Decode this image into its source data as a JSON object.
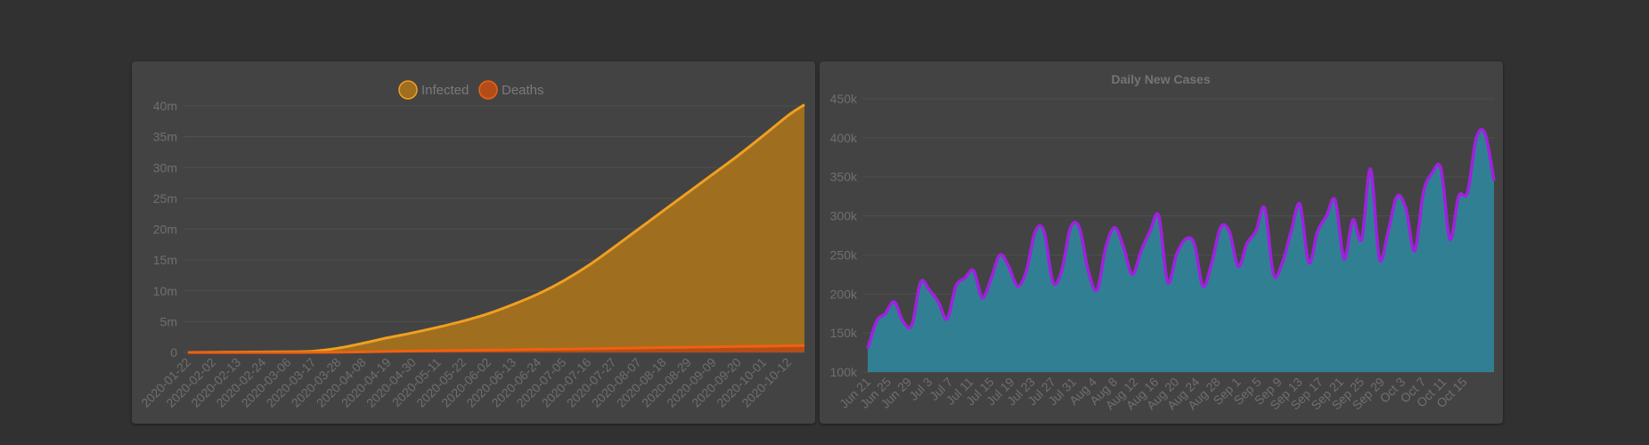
{
  "chart_data": [
    {
      "type": "area",
      "title": "",
      "legend": {
        "placement": "top-center"
      },
      "grid": true,
      "ylim": [
        0,
        40000000
      ],
      "y_ticks": [
        "0",
        "5m",
        "10m",
        "15m",
        "20m",
        "25m",
        "30m",
        "35m",
        "40m"
      ],
      "x_ticks": [
        "2020-01-22",
        "2020-02-02",
        "2020-02-13",
        "2020-02-24",
        "2020-03-06",
        "2020-03-17",
        "2020-03-28",
        "2020-04-08",
        "2020-04-19",
        "2020-04-30",
        "2020-05-11",
        "2020-05-22",
        "2020-06-02",
        "2020-06-13",
        "2020-06-24",
        "2020-07-05",
        "2020-07-16",
        "2020-07-27",
        "2020-08-07",
        "2020-08-18",
        "2020-08-29",
        "2020-09-09",
        "2020-09-20",
        "2020-10-01",
        "2020-10-12"
      ],
      "x": [
        "2020-01-22",
        "2020-02-13",
        "2020-03-06",
        "2020-03-17",
        "2020-03-28",
        "2020-04-08",
        "2020-04-19",
        "2020-04-30",
        "2020-05-11",
        "2020-05-22",
        "2020-06-02",
        "2020-06-13",
        "2020-06-24",
        "2020-07-05",
        "2020-07-16",
        "2020-07-27",
        "2020-08-07",
        "2020-08-18",
        "2020-08-29",
        "2020-09-09",
        "2020-09-20",
        "2020-10-01",
        "2020-10-12",
        "2020-10-19"
      ],
      "series": [
        {
          "name": "Infected",
          "color": "#f0a020",
          "fill": "#a06e1f",
          "values": [
            600,
            60000,
            100000,
            200000,
            700000,
            1500000,
            2400000,
            3200000,
            4100000,
            5100000,
            6300000,
            7800000,
            9500000,
            11600000,
            14100000,
            17000000,
            20000000,
            23000000,
            26000000,
            29000000,
            32000000,
            35200000,
            38500000,
            40200000
          ]
        },
        {
          "name": "Deaths",
          "color": "#f06010",
          "fill": "#b34d18",
          "values": [
            17,
            1400,
            3500,
            7500,
            30000,
            88000,
            165000,
            234000,
            287000,
            340000,
            380000,
            430000,
            490000,
            540000,
            590000,
            660000,
            720000,
            790000,
            850000,
            910000,
            970000,
            1010000,
            1080000,
            1110000
          ]
        }
      ]
    },
    {
      "type": "area",
      "title": "Daily New Cases",
      "grid": true,
      "ylim": [
        100000,
        450000
      ],
      "y_ticks": [
        "100k",
        "150k",
        "200k",
        "250k",
        "300k",
        "350k",
        "400k",
        "450k"
      ],
      "x_ticks": [
        "Jun 21",
        "Jun 25",
        "Jun 29",
        "Jul 3",
        "Jul 7",
        "Jul 11",
        "Jul 15",
        "Jul 19",
        "Jul 23",
        "Jul 27",
        "Jul 31",
        "Aug 4",
        "Aug 8",
        "Aug 12",
        "Aug 16",
        "Aug 20",
        "Aug 24",
        "Aug 28",
        "Sep 1",
        "Sep 5",
        "Sep 9",
        "Sep 13",
        "Sep 17",
        "Sep 21",
        "Sep 25",
        "Sep 29",
        "Oct 3",
        "Oct 7",
        "Oct 11",
        "Oct 15"
      ],
      "series": [
        {
          "name": "",
          "color": "#a020e0",
          "fill": "#317f93",
          "values": [
            130000,
            165000,
            175000,
            190000,
            165000,
            160000,
            215000,
            205000,
            190000,
            168000,
            210000,
            220000,
            230000,
            195000,
            220000,
            250000,
            235000,
            210000,
            230000,
            280000,
            280000,
            215000,
            230000,
            285000,
            285000,
            230000,
            205000,
            260000,
            285000,
            260000,
            225000,
            255000,
            280000,
            300000,
            215000,
            250000,
            270000,
            265000,
            210000,
            240000,
            285000,
            280000,
            235000,
            265000,
            280000,
            310000,
            225000,
            240000,
            280000,
            315000,
            240000,
            280000,
            300000,
            320000,
            245000,
            295000,
            270000,
            360000,
            245000,
            280000,
            325000,
            310000,
            255000,
            330000,
            355000,
            360000,
            270000,
            325000,
            330000,
            400000,
            405000,
            345000
          ]
        }
      ]
    }
  ]
}
